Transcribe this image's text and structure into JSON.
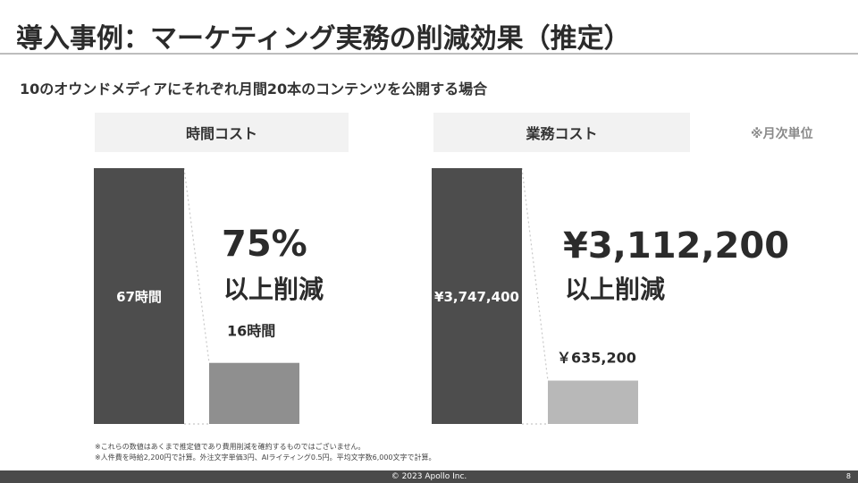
{
  "title": "導入事例：マーケティング実務の削減効果（推定）",
  "subtitle": "10のオウンドメディアにそれぞれ月間20本のコンテンツを公開する場合",
  "unit_note": "※月次単位",
  "colors": {
    "before": "#4d4d4d",
    "after_time": "#8f8f8f",
    "after_work": "#b8b8b8",
    "panel_bg": "#f2f2f2",
    "footer": "#4a4a4a"
  },
  "chart_data": [
    {
      "type": "bar",
      "panel_label": "時間コスト",
      "categories": [
        "before",
        "after"
      ],
      "values": [
        67,
        16
      ],
      "data_labels": [
        "67時間",
        "16時間"
      ],
      "ylim": [
        0,
        67
      ],
      "reduction_value": "75%",
      "reduction_label": "以上削減"
    },
    {
      "type": "bar",
      "panel_label": "業務コスト",
      "categories": [
        "before",
        "after"
      ],
      "values": [
        3747400,
        635200
      ],
      "data_labels": [
        "¥3,747,400",
        "￥635,200"
      ],
      "ylim": [
        0,
        3747400
      ],
      "reduction_value": "¥3,112,200",
      "reduction_label": "以上削減"
    }
  ],
  "notes": [
    "※これらの数値はあくまで推定値であり費用削減を確約するものではございません。",
    "※人件費を時給2,200円で計算。外注文字単価3円、AIライティング0.5円。平均文字数6,000文字で計算。"
  ],
  "footer": {
    "copyright": "© 2023 Apollo Inc.",
    "page_number": "8"
  }
}
